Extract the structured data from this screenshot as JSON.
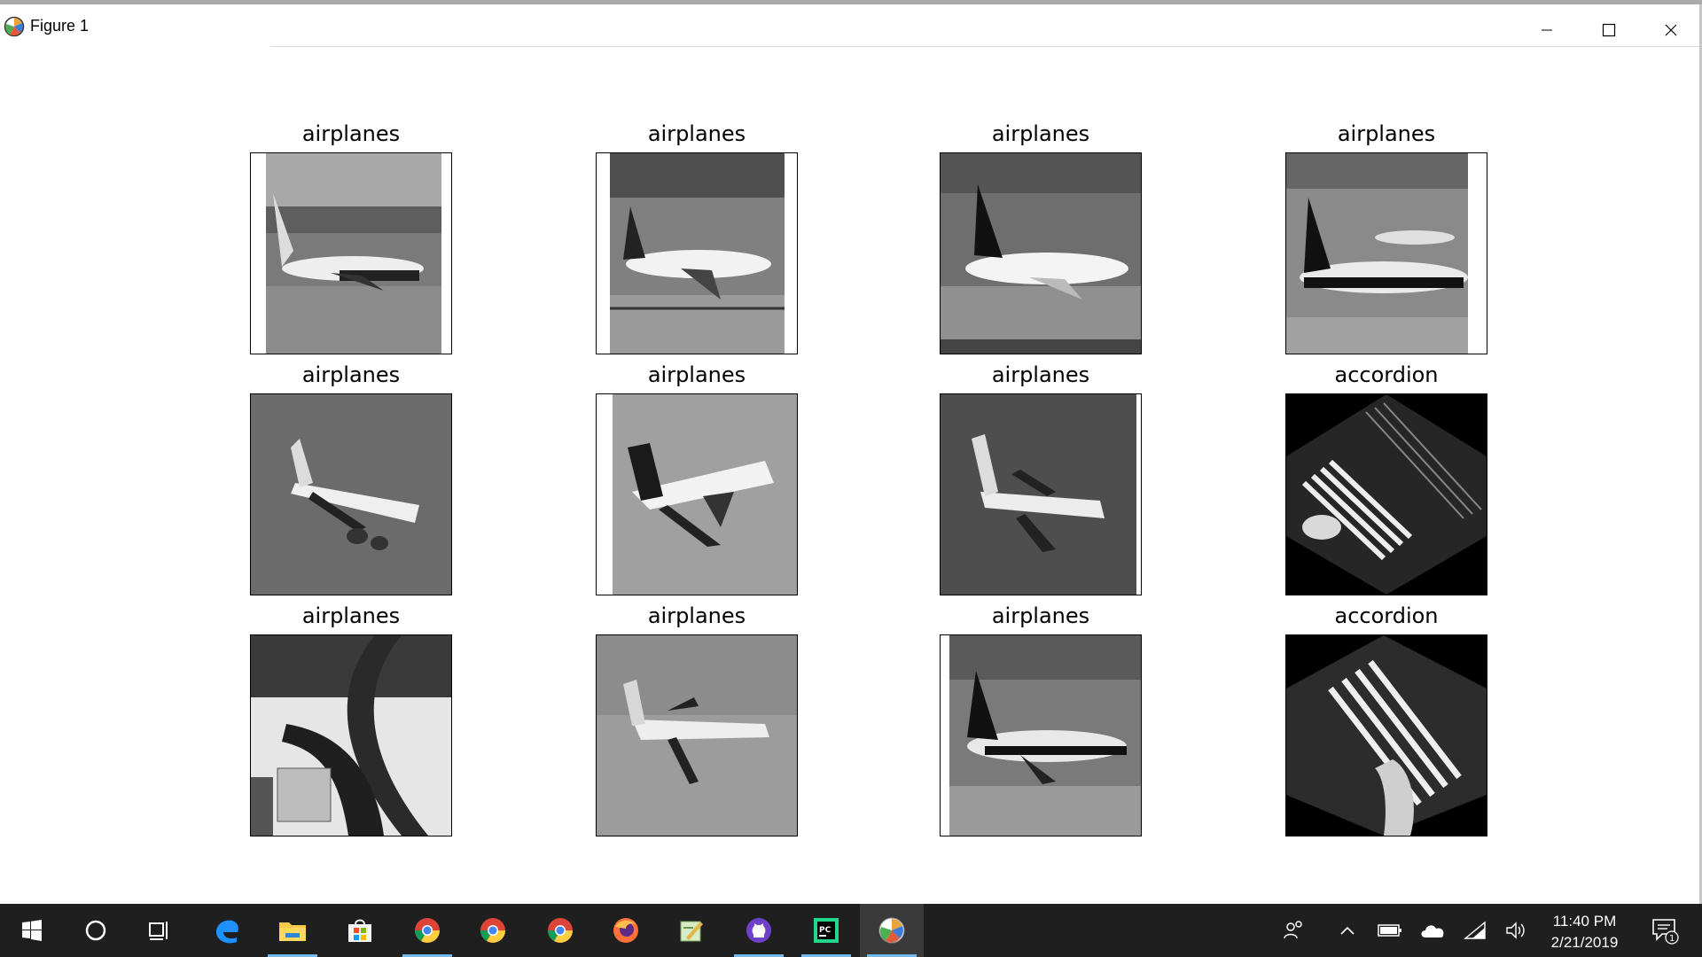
{
  "window": {
    "title": "Figure 1",
    "icon": "matplotlib-icon"
  },
  "figure": {
    "subplots": [
      {
        "title": "airplanes",
        "image": "airplane-on-runway"
      },
      {
        "title": "airplanes",
        "image": "airplane-on-runway"
      },
      {
        "title": "airplanes",
        "image": "airplane-on-runway"
      },
      {
        "title": "airplanes",
        "image": "airplane-on-runway"
      },
      {
        "title": "airplanes",
        "image": "airplane-in-flight"
      },
      {
        "title": "airplanes",
        "image": "airplane-in-flight"
      },
      {
        "title": "airplanes",
        "image": "airplane-in-flight"
      },
      {
        "title": "accordion",
        "image": "accordion-keyboard"
      },
      {
        "title": "airplanes",
        "image": "abstract-sculpture"
      },
      {
        "title": "airplanes",
        "image": "airplane-in-flight"
      },
      {
        "title": "airplanes",
        "image": "airplane-on-runway"
      },
      {
        "title": "accordion",
        "image": "accordion-keyboard"
      }
    ]
  },
  "taskbar": {
    "apps": [
      "start-icon",
      "cortana-icon",
      "task-view-icon",
      "edge-icon",
      "file-explorer-icon",
      "store-icon",
      "chrome-icon",
      "chrome-icon",
      "chrome-icon",
      "firefox-icon",
      "notepad-icon",
      "github-icon",
      "pycharm-icon",
      "matplotlib-icon"
    ],
    "tray": [
      "people-icon",
      "chevron-up-icon",
      "battery-icon",
      "onedrive-icon",
      "wifi-icon",
      "volume-icon",
      "notification-icon"
    ],
    "time": "11:40 PM",
    "date": "2/21/2019",
    "notification_count": "1"
  },
  "colors": {
    "taskbar_bg": "#1f1f1f",
    "accent": "#76b9ed"
  }
}
